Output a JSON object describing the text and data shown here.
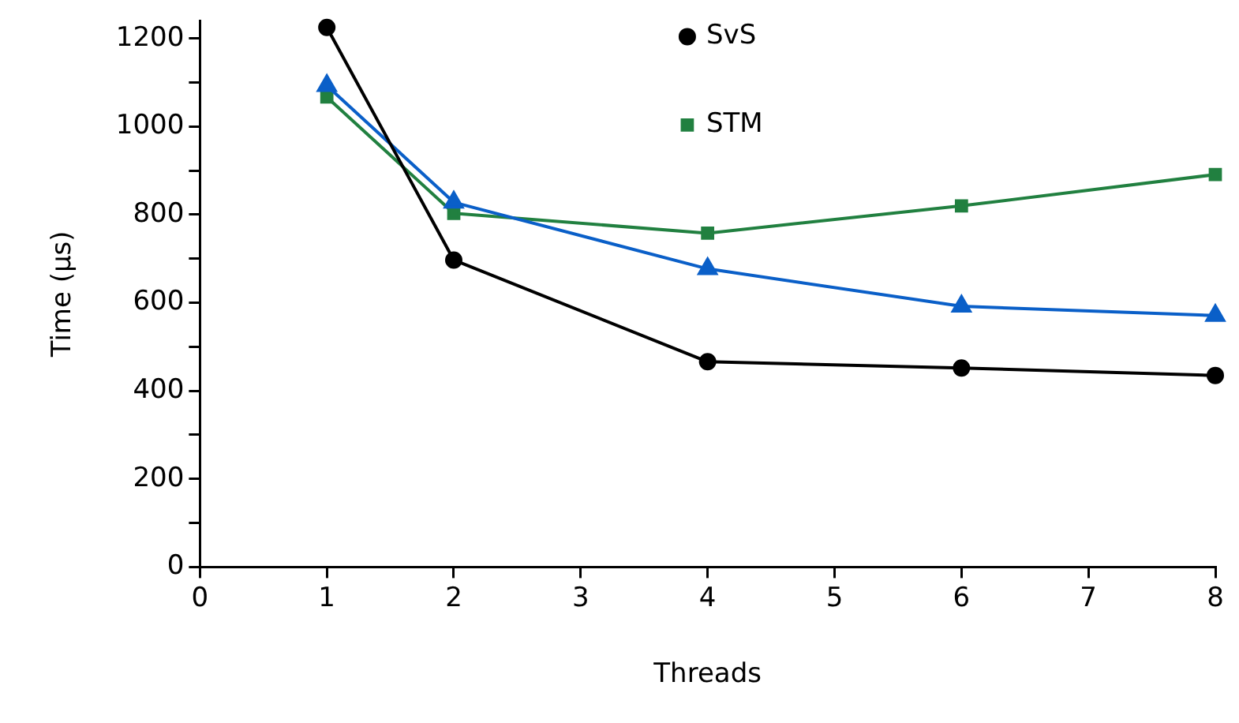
{
  "chart_data": {
    "type": "line",
    "xlabel": "Threads",
    "ylabel": "Time (µs)",
    "xlim": [
      0,
      8
    ],
    "xticks": [
      0,
      1,
      2,
      3,
      4,
      5,
      6,
      7,
      8
    ],
    "ylim": [
      0,
      1240
    ],
    "yticks": [
      0,
      {
        "value": 100,
        "label": null
      },
      200,
      {
        "value": 300,
        "label": null
      },
      400,
      {
        "value": 500,
        "label": null
      },
      600,
      {
        "value": 700,
        "label": null
      },
      800,
      {
        "value": 900,
        "label": null
      },
      1000,
      {
        "value": 1100,
        "label": null
      },
      1200
    ],
    "grid": false,
    "legend": "top",
    "line_style": "solid",
    "series": [
      {
        "name": "SvS",
        "color": "#000000",
        "marker": "circle",
        "x": [
          1,
          2,
          4,
          6,
          8
        ],
        "values": [
          1225,
          697,
          466,
          452,
          435
        ]
      },
      {
        "color": "#0a5fc8",
        "marker": "triangle",
        "x": [
          1,
          2,
          4,
          6,
          8
        ],
        "values": [
          1093,
          828,
          677,
          592,
          571
        ]
      },
      {
        "name": "STM",
        "color": "#218040",
        "marker": "square",
        "x": [
          1,
          2,
          4,
          6,
          8
        ],
        "values": [
          1067,
          803,
          758,
          820,
          891
        ]
      }
    ]
  }
}
